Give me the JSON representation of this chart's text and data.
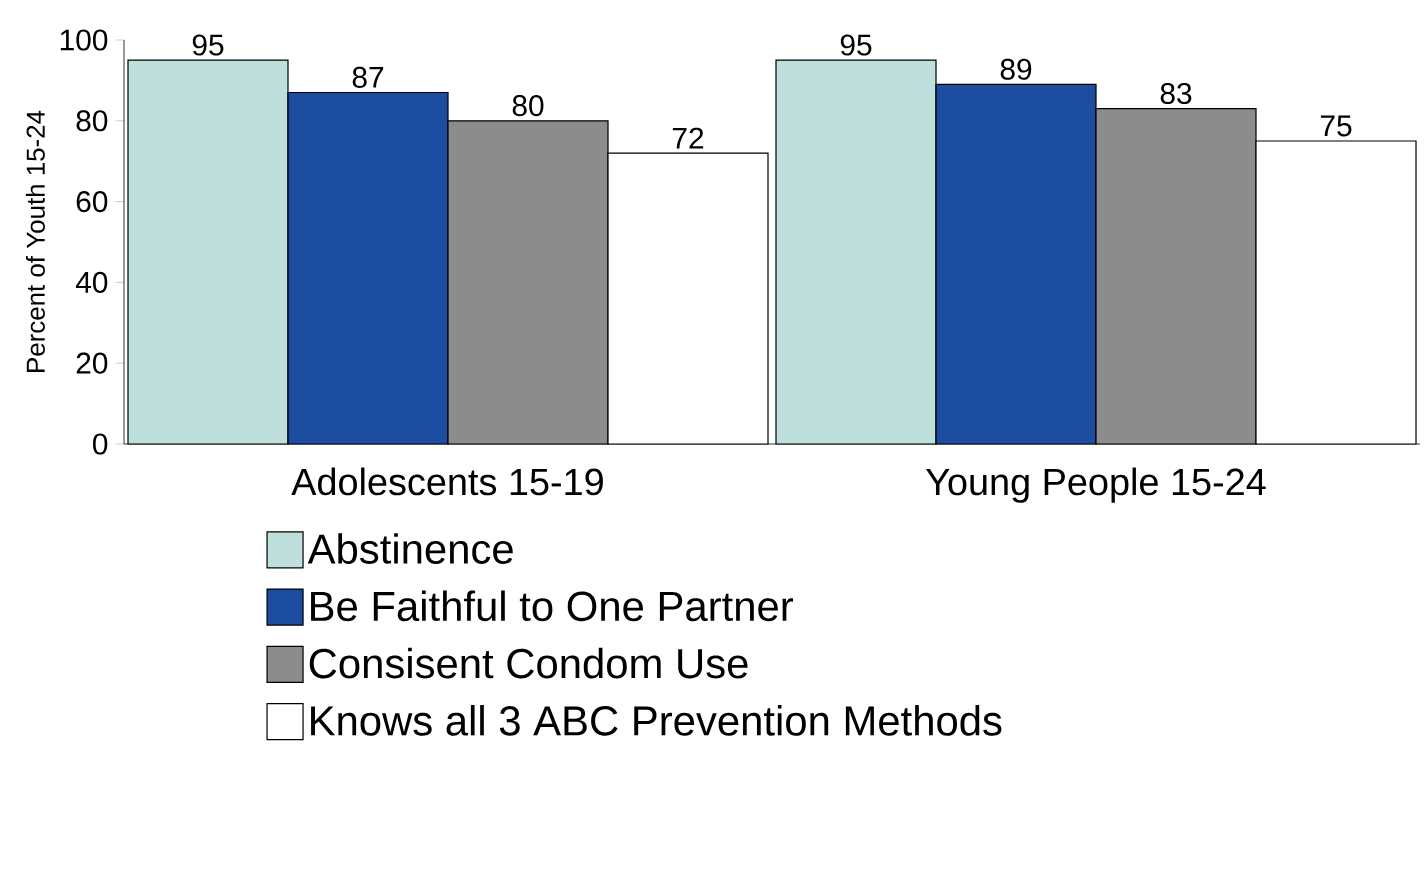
{
  "chart_data": {
    "type": "bar",
    "ylabel": "Percent of Youth 15-24",
    "categories": [
      "Adolescents 15-19",
      "Young People 15-24"
    ],
    "series": [
      {
        "name": "Abstinence",
        "color": "#bfdfdd",
        "values": [
          95,
          95
        ]
      },
      {
        "name": "Be Faithful to One Partner",
        "color": "#1c4da0",
        "values": [
          87,
          89
        ]
      },
      {
        "name": "Consisent Condom Use",
        "color": "#8c8c8c",
        "values": [
          80,
          83
        ]
      },
      {
        "name": "Knows all 3 ABC Prevention Methods",
        "color": "#ffffff",
        "values": [
          72,
          75
        ]
      }
    ],
    "ylim": [
      0,
      100
    ],
    "yticks": [
      0,
      20,
      40,
      60,
      80,
      100
    ],
    "data_labels": true,
    "legend": "bottom"
  }
}
